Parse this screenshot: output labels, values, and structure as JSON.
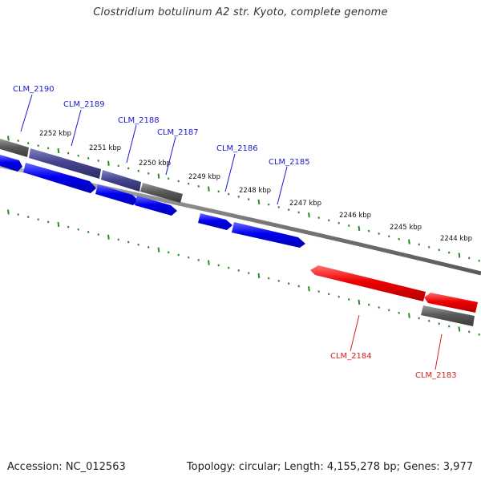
{
  "title": "Clostridium botulinum A2 str. Kyoto, complete genome",
  "footer": {
    "accession": "Accession: NC_012563",
    "stats": "Topology: circular; Length: 4,155,278 bp; Genes: 3,977"
  },
  "ticks": [
    "2252 kbp",
    "2251 kbp",
    "2250 kbp",
    "2249 kbp",
    "2248 kbp",
    "2247 kbp",
    "2246 kbp",
    "2245 kbp",
    "2244 kbp"
  ],
  "genes": [
    {
      "label": "CLM_2190",
      "color": "#1a1acc"
    },
    {
      "label": "CLM_2189",
      "color": "#1a1acc"
    },
    {
      "label": "CLM_2188",
      "color": "#1a1acc"
    },
    {
      "label": "CLM_2187",
      "color": "#1a1acc"
    },
    {
      "label": "CLM_2186",
      "color": "#1a1acc"
    },
    {
      "label": "CLM_2185",
      "color": "#1a1acc"
    },
    {
      "label": "CLM_2184",
      "color": "#d62020"
    },
    {
      "label": "CLM_2183",
      "color": "#d62020"
    }
  ],
  "colors": {
    "forward_cds": "#0000ee",
    "reverse_cds": "#ee0000",
    "gene_feature": "#505050",
    "cds_over_gene": "#3a3a8a",
    "backbone": "#808080",
    "ticks": "#2a8a2a"
  }
}
